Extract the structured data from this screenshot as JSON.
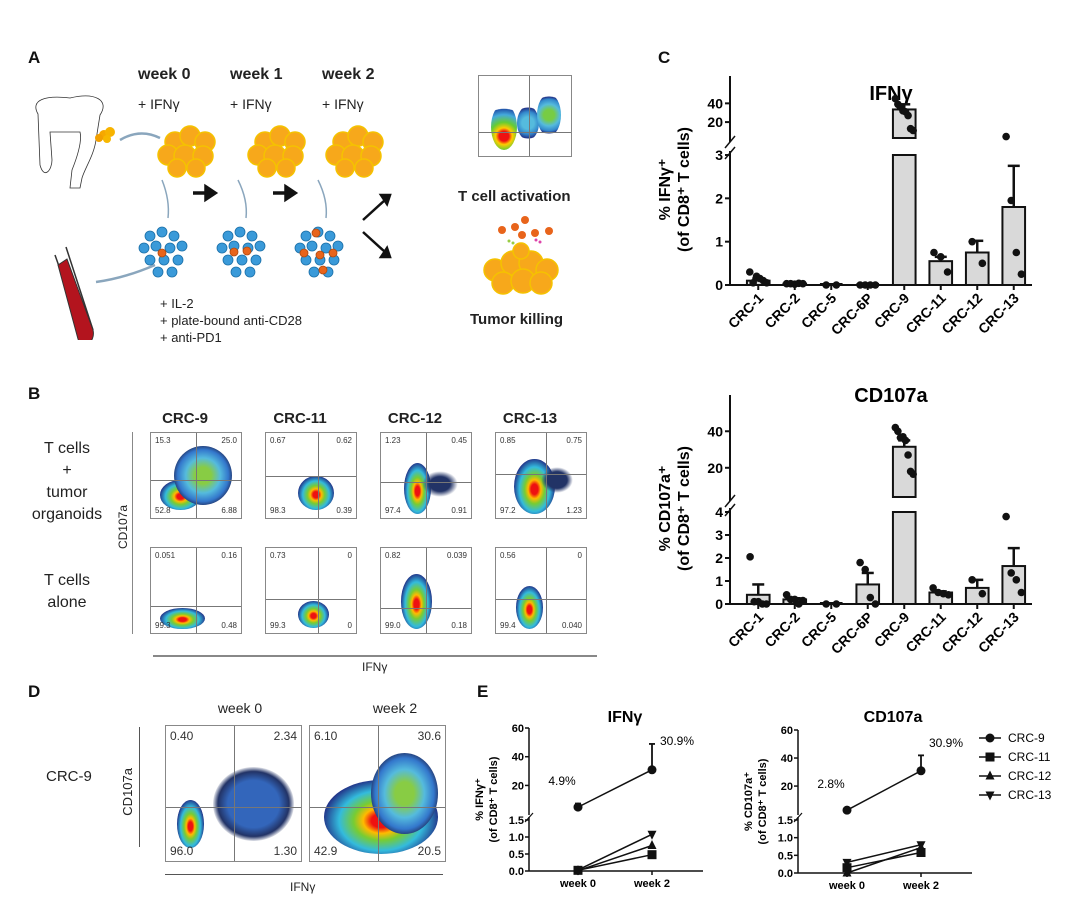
{
  "panels": {
    "A": {
      "label": "A",
      "weeks": [
        "week 0",
        "week 1",
        "week 2"
      ],
      "ifn_addition": "+ IFNγ",
      "reagents": [
        "+ IL-2",
        "+ plate-bound anti-CD28",
        "+ anti-PD1"
      ],
      "outcomes": [
        "T cell activation",
        "Tumor killing"
      ]
    },
    "B": {
      "label": "B",
      "columns": [
        "CRC-9",
        "CRC-11",
        "CRC-12",
        "CRC-13"
      ],
      "rows": [
        {
          "label_lines": [
            "T cells",
            "+",
            "tumor",
            "organoids"
          ],
          "plots": [
            {
              "ul": "15.3",
              "ur": "25.0",
              "ll": "52.8",
              "lr": "6.88"
            },
            {
              "ul": "0.67",
              "ur": "0.62",
              "ll": "98.3",
              "lr": "0.39"
            },
            {
              "ul": "1.23",
              "ur": "0.45",
              "ll": "97.4",
              "lr": "0.91"
            },
            {
              "ul": "0.85",
              "ur": "0.75",
              "ll": "97.2",
              "lr": "1.23"
            }
          ]
        },
        {
          "label_lines": [
            "T cells",
            "alone"
          ],
          "plots": [
            {
              "ul": "0.051",
              "ur": "0.16",
              "ll": "99.3",
              "lr": "0.48"
            },
            {
              "ul": "0.73",
              "ur": "0",
              "ll": "99.3",
              "lr": "0"
            },
            {
              "ul": "0.82",
              "ur": "0.039",
              "ll": "99.0",
              "lr": "0.18"
            },
            {
              "ul": "0.56",
              "ur": "0",
              "ll": "99.4",
              "lr": "0.040"
            }
          ]
        }
      ],
      "y_axis": "CD107a",
      "x_axis": "IFNγ"
    },
    "D": {
      "label": "D",
      "row_label": "CRC-9",
      "columns": [
        "week 0",
        "week 2"
      ],
      "plots": [
        {
          "ul": "0.40",
          "ur": "2.34",
          "ll": "96.0",
          "lr": "1.30"
        },
        {
          "ul": "6.10",
          "ur": "30.6",
          "ll": "42.9",
          "lr": "20.5"
        }
      ],
      "y_axis": "CD107a",
      "x_axis": "IFNγ"
    },
    "C_label": "C",
    "E_label": "E"
  },
  "chart_data": [
    {
      "id": "C-ifng",
      "type": "bar",
      "title": "IFNγ",
      "ylabel_line1": "% IFNγ⁺",
      "ylabel_line2": "(of CD8⁺ T cells)",
      "categories": [
        "CRC-1",
        "CRC-2",
        "CRC-5",
        "CRC-6P",
        "CRC-9",
        "CRC-11",
        "CRC-12",
        "CRC-13"
      ],
      "values": [
        0.1,
        0.03,
        0.0,
        0.0,
        33.5,
        0.55,
        0.75,
        1.8
      ],
      "errors": [
        0.05,
        0.01,
        0.0,
        0.0,
        5.5,
        0.1,
        0.27,
        0.95
      ],
      "points": [
        [
          0.3,
          0.05,
          0.2,
          0.15,
          0.1,
          0.05
        ],
        [
          0.03,
          0.03,
          0.02,
          0.04,
          0.03
        ],
        [
          0.0,
          0.0
        ],
        [
          0.0,
          0.0,
          0.0,
          0.0
        ],
        [
          45,
          39,
          36,
          32,
          31,
          27,
          13,
          11
        ],
        [
          0.75,
          0.65,
          0.3
        ],
        [
          1.0,
          0.5
        ],
        [
          4.5,
          1.95,
          0.75,
          0.25
        ]
      ],
      "y_break": {
        "lower": [
          0,
          3
        ],
        "upper": [
          3,
          50
        ]
      },
      "lower_ticks": [
        0,
        1,
        2,
        3
      ],
      "upper_ticks": [
        20,
        40
      ]
    },
    {
      "id": "C-cd107a",
      "type": "bar",
      "title": "CD107a",
      "ylabel_line1": "% CD107a⁺",
      "ylabel_line2": "(of CD8⁺ T cells)",
      "categories": [
        "CRC-1",
        "CRC-2",
        "CRC-5",
        "CRC-6P",
        "CRC-9",
        "CRC-11",
        "CRC-12",
        "CRC-13"
      ],
      "values": [
        0.4,
        0.2,
        0.0,
        0.85,
        31.5,
        0.5,
        0.7,
        1.65
      ],
      "errors": [
        0.45,
        0.05,
        0.0,
        0.5,
        3.5,
        0.05,
        0.35,
        0.78
      ],
      "points": [
        [
          2.05,
          0.1,
          0.1,
          0.0,
          0.0
        ],
        [
          0.4,
          0.2,
          0.2,
          0.0,
          0.15
        ],
        [
          0.0,
          0.0
        ],
        [
          1.8,
          1.5,
          0.28,
          0.0
        ],
        [
          42,
          40,
          36.5,
          37,
          35,
          27,
          18,
          16.5
        ],
        [
          0.7,
          0.5,
          0.45,
          0.4
        ],
        [
          1.05,
          0.45
        ],
        [
          3.8,
          1.35,
          1.05,
          0.5
        ]
      ],
      "y_break": {
        "lower": [
          0,
          4
        ],
        "upper": [
          4,
          50
        ]
      },
      "lower_ticks": [
        0,
        1,
        2,
        3,
        4
      ],
      "upper_ticks": [
        20,
        40
      ]
    },
    {
      "id": "E-ifng",
      "type": "line",
      "title": "IFNγ",
      "ylabel_line1": "% IFNγ⁺",
      "ylabel_line2": "(of CD8⁺ T cells)",
      "x": [
        "week 0",
        "week 2"
      ],
      "series": [
        {
          "name": "CRC-9",
          "marker": "circle",
          "values": [
            4.9,
            30.9
          ],
          "errors": [
            2.5,
            18
          ]
        },
        {
          "name": "CRC-11",
          "marker": "square",
          "values": [
            0.02,
            0.48
          ]
        },
        {
          "name": "CRC-12",
          "marker": "triangle-up",
          "values": [
            0.01,
            0.75
          ]
        },
        {
          "name": "CRC-13",
          "marker": "triangle-down",
          "values": [
            0.03,
            1.08
          ]
        }
      ],
      "annotations": [
        {
          "x": "week 0",
          "text": "4.9%"
        },
        {
          "x": "week 2",
          "text": "30.9%"
        }
      ],
      "y_break": {
        "lower": [
          0,
          1.5
        ],
        "upper": [
          1.5,
          60
        ]
      },
      "lower_ticks": [
        "0.0",
        "0.5",
        "1.0",
        "1.5"
      ],
      "upper_ticks": [
        20,
        40,
        60
      ]
    },
    {
      "id": "E-cd107a",
      "type": "line",
      "title": "CD107a",
      "ylabel_line1": "% CD107a⁺",
      "ylabel_line2": "(of CD8⁺ T cells)",
      "x": [
        "week 0",
        "week 2"
      ],
      "series": [
        {
          "name": "CRC-9",
          "marker": "circle",
          "values": [
            2.8,
            30.9
          ],
          "errors": [
            0,
            11
          ]
        },
        {
          "name": "CRC-11",
          "marker": "square",
          "values": [
            0.15,
            0.58
          ]
        },
        {
          "name": "CRC-12",
          "marker": "triangle-up",
          "values": [
            0.0,
            0.72
          ]
        },
        {
          "name": "CRC-13",
          "marker": "triangle-down",
          "values": [
            0.3,
            0.8
          ]
        }
      ],
      "annotations": [
        {
          "x": "week 0",
          "text": "2.8%"
        },
        {
          "x": "week 2",
          "text": "30.9%"
        }
      ],
      "y_break": {
        "lower": [
          0,
          1.5
        ],
        "upper": [
          1.5,
          60
        ]
      },
      "lower_ticks": [
        "0.0",
        "0.5",
        "1.0",
        "1.5"
      ],
      "upper_ticks": [
        20,
        40,
        60
      ],
      "legend": [
        "CRC-9",
        "CRC-11",
        "CRC-12",
        "CRC-13"
      ]
    }
  ]
}
